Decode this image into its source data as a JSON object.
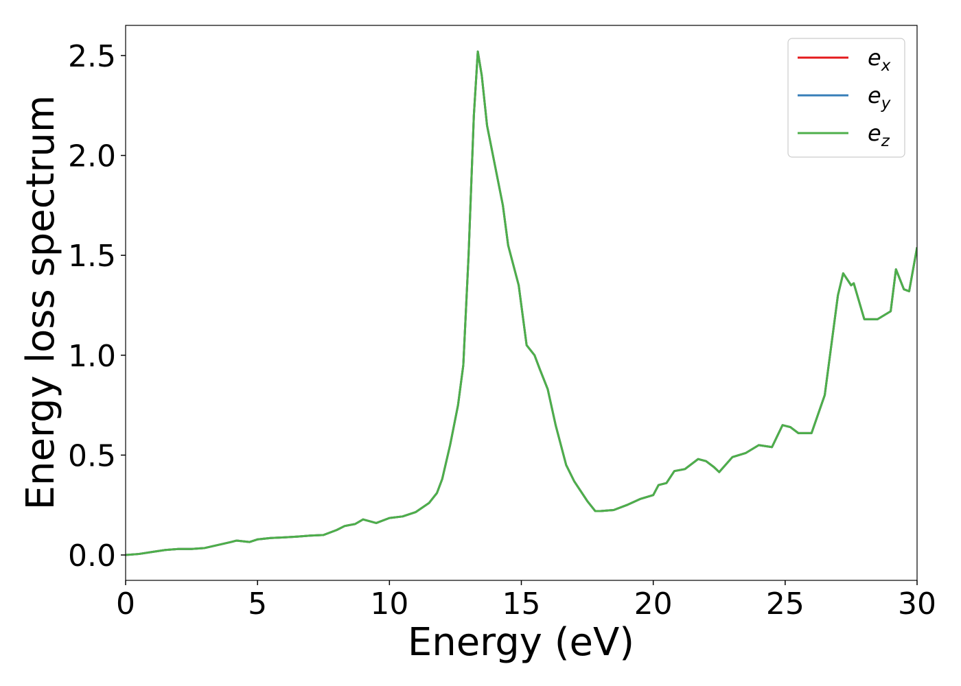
{
  "chart_data": {
    "type": "line",
    "xlabel": "Energy (eV)",
    "ylabel": "Energy loss spectrum",
    "x": [
      0,
      0.5,
      1,
      1.5,
      2,
      2.5,
      3,
      3.5,
      4,
      4.2,
      4.7,
      5,
      5.5,
      6,
      6.5,
      7,
      7.5,
      8,
      8.3,
      8.7,
      9,
      9.5,
      10,
      10.5,
      11,
      11.5,
      11.8,
      12,
      12.3,
      12.6,
      12.8,
      13,
      13.2,
      13.35,
      13.5,
      13.7,
      14,
      14.3,
      14.5,
      14.9,
      15.2,
      15.5,
      15.7,
      16,
      16.3,
      16.7,
      17,
      17.5,
      17.8,
      18,
      18.5,
      19,
      19.5,
      20,
      20.2,
      20.5,
      20.8,
      21.2,
      21.7,
      22,
      22.3,
      22.5,
      23,
      23.5,
      24,
      24.5,
      24.9,
      25.2,
      25.5,
      26,
      26.5,
      27,
      27.2,
      27.5,
      27.6,
      28,
      28.5,
      29,
      29.2,
      29.5,
      29.7,
      30
    ],
    "series": [
      {
        "name": "e_x",
        "color": "#e41a1c",
        "values": [
          0,
          0.005,
          0.015,
          0.025,
          0.03,
          0.03,
          0.035,
          0.05,
          0.065,
          0.072,
          0.065,
          0.078,
          0.085,
          0.088,
          0.092,
          0.097,
          0.1,
          0.125,
          0.145,
          0.155,
          0.178,
          0.16,
          0.185,
          0.193,
          0.215,
          0.26,
          0.31,
          0.38,
          0.55,
          0.75,
          0.95,
          1.5,
          2.2,
          2.52,
          2.4,
          2.15,
          1.95,
          1.75,
          1.55,
          1.35,
          1.05,
          1.0,
          0.93,
          0.83,
          0.65,
          0.45,
          0.37,
          0.27,
          0.22,
          0.22,
          0.225,
          0.25,
          0.28,
          0.3,
          0.35,
          0.36,
          0.42,
          0.43,
          0.48,
          0.47,
          0.44,
          0.415,
          0.49,
          0.51,
          0.55,
          0.54,
          0.65,
          0.64,
          0.61,
          0.61,
          0.8,
          1.3,
          1.41,
          1.35,
          1.36,
          1.18,
          1.18,
          1.22,
          1.43,
          1.33,
          1.32,
          1.54
        ]
      },
      {
        "name": "e_y",
        "color": "#377eb8",
        "values": [
          0,
          0.005,
          0.015,
          0.025,
          0.03,
          0.03,
          0.035,
          0.05,
          0.065,
          0.072,
          0.065,
          0.078,
          0.085,
          0.088,
          0.092,
          0.097,
          0.1,
          0.125,
          0.145,
          0.155,
          0.178,
          0.16,
          0.185,
          0.193,
          0.215,
          0.26,
          0.31,
          0.38,
          0.55,
          0.75,
          0.95,
          1.5,
          2.2,
          2.52,
          2.4,
          2.15,
          1.95,
          1.75,
          1.55,
          1.35,
          1.05,
          1.0,
          0.93,
          0.83,
          0.65,
          0.45,
          0.37,
          0.27,
          0.22,
          0.22,
          0.225,
          0.25,
          0.28,
          0.3,
          0.35,
          0.36,
          0.42,
          0.43,
          0.48,
          0.47,
          0.44,
          0.415,
          0.49,
          0.51,
          0.55,
          0.54,
          0.65,
          0.64,
          0.61,
          0.61,
          0.8,
          1.3,
          1.41,
          1.35,
          1.36,
          1.18,
          1.18,
          1.22,
          1.43,
          1.33,
          1.32,
          1.54
        ]
      },
      {
        "name": "e_z",
        "color": "#4daf4a",
        "values": [
          0,
          0.005,
          0.015,
          0.025,
          0.03,
          0.03,
          0.035,
          0.05,
          0.065,
          0.072,
          0.065,
          0.078,
          0.085,
          0.088,
          0.092,
          0.097,
          0.1,
          0.125,
          0.145,
          0.155,
          0.178,
          0.16,
          0.185,
          0.193,
          0.215,
          0.26,
          0.31,
          0.38,
          0.55,
          0.75,
          0.95,
          1.5,
          2.2,
          2.52,
          2.4,
          2.15,
          1.95,
          1.75,
          1.55,
          1.35,
          1.05,
          1.0,
          0.93,
          0.83,
          0.65,
          0.45,
          0.37,
          0.27,
          0.22,
          0.22,
          0.225,
          0.25,
          0.28,
          0.3,
          0.35,
          0.36,
          0.42,
          0.43,
          0.48,
          0.47,
          0.44,
          0.415,
          0.49,
          0.51,
          0.55,
          0.54,
          0.65,
          0.64,
          0.61,
          0.61,
          0.8,
          1.3,
          1.41,
          1.35,
          1.36,
          1.18,
          1.18,
          1.22,
          1.43,
          1.33,
          1.32,
          1.54
        ]
      }
    ],
    "xlim": [
      0,
      30
    ],
    "xticks": [
      0,
      5,
      10,
      15,
      20,
      25,
      30
    ],
    "ylim": [
      -0.127,
      2.651
    ],
    "yticks": [
      {
        "value": 0,
        "label": "0.0"
      },
      0.5,
      {
        "value": 1,
        "label": "1.0"
      },
      1.5,
      {
        "value": 2,
        "label": "2.0"
      },
      2.5
    ],
    "grid": false,
    "legend": "upper right"
  }
}
